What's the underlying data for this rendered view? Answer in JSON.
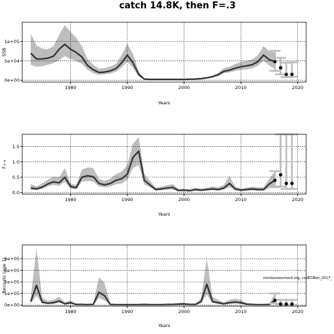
{
  "figure_title": "catch 14.8K, then F=.3",
  "footnote": "stockassessment.org, codEGBen_2017_",
  "chart_data": [
    {
      "type": "line",
      "panel": "ssb",
      "ylabel": "SSB",
      "xlabel": "Years",
      "xlim": [
        1971.5,
        2021.5
      ],
      "ylim": [
        -5000,
        150000
      ],
      "xticks": [
        1980,
        1990,
        2000,
        2010,
        2020
      ],
      "yticks": [
        0,
        50000,
        100000
      ],
      "ytick_labels": [
        "0e+00",
        "5e+04",
        "1e+05"
      ],
      "grid": true,
      "x": [
        1973,
        1974,
        1975,
        1976,
        1977,
        1978,
        1979,
        1980,
        1981,
        1982,
        1983,
        1984,
        1985,
        1986,
        1987,
        1988,
        1989,
        1990,
        1991,
        1992,
        1993,
        1994,
        1995,
        1996,
        1997,
        1998,
        1999,
        2000,
        2001,
        2002,
        2003,
        2004,
        2005,
        2006,
        2007,
        2008,
        2009,
        2010,
        2011,
        2012,
        2013,
        2014,
        2015,
        2016
      ],
      "y": [
        70000,
        55000,
        55000,
        57000,
        62000,
        80000,
        93000,
        80000,
        72000,
        60000,
        38000,
        27000,
        20000,
        21000,
        24000,
        30000,
        45000,
        65000,
        45000,
        15000,
        3000,
        2000,
        2000,
        2000,
        2000,
        2000,
        2000,
        2000,
        2500,
        3000,
        4000,
        6000,
        9000,
        14000,
        23000,
        26000,
        31000,
        35000,
        37000,
        40000,
        48000,
        65000,
        53000,
        48000
      ],
      "lower": [
        40000,
        35000,
        36000,
        40000,
        44000,
        52000,
        62000,
        55000,
        50000,
        42000,
        27000,
        18000,
        14000,
        15000,
        17000,
        22000,
        33000,
        48000,
        32000,
        10000,
        2000,
        1500,
        1500,
        1500,
        1500,
        1500,
        1500,
        1500,
        1800,
        2200,
        3000,
        4500,
        7000,
        11000,
        18000,
        20000,
        24000,
        27000,
        28000,
        31000,
        37000,
        50000,
        38000,
        30000
      ],
      "upper": [
        120000,
        90000,
        82000,
        80000,
        88000,
        118000,
        143000,
        125000,
        110000,
        88000,
        55000,
        40000,
        30000,
        31000,
        35000,
        42000,
        65000,
        95000,
        68000,
        22000,
        5000,
        3000,
        3000,
        3000,
        3000,
        3000,
        3000,
        3000,
        3500,
        4000,
        5500,
        8000,
        12000,
        19000,
        31000,
        35000,
        42000,
        47000,
        50000,
        54000,
        65000,
        88000,
        75000,
        72000
      ],
      "projection": {
        "x": [
          2016,
          2017,
          2018,
          2019
        ],
        "y": [
          48000,
          32000,
          15000,
          15000
        ],
        "lower": [
          24000,
          15000,
          8000,
          9000
        ],
        "upper": [
          76000,
          58000,
          45000,
          46000
        ]
      }
    },
    {
      "type": "line",
      "panel": "f",
      "ylabel": "F₄₋₈",
      "xlabel": "Years",
      "xlim": [
        1971.5,
        2021.5
      ],
      "ylim": [
        -0.05,
        1.9
      ],
      "xticks": [
        1980,
        1990,
        2000,
        2010,
        2020
      ],
      "yticks": [
        0.0,
        0.5,
        1.0,
        1.5
      ],
      "ytick_labels": [
        "0.0",
        "0.5",
        "1.0",
        "1.5"
      ],
      "grid": true,
      "x": [
        1973,
        1974,
        1975,
        1976,
        1977,
        1978,
        1979,
        1980,
        1981,
        1982,
        1983,
        1984,
        1985,
        1986,
        1987,
        1988,
        1989,
        1990,
        1991,
        1992,
        1993,
        1994,
        1995,
        1996,
        1997,
        1998,
        1999,
        2000,
        2001,
        2002,
        2003,
        2004,
        2005,
        2006,
        2007,
        2008,
        2009,
        2010,
        2011,
        2012,
        2013,
        2014,
        2015,
        2016
      ],
      "y": [
        0.15,
        0.12,
        0.18,
        0.28,
        0.35,
        0.32,
        0.5,
        0.2,
        0.16,
        0.5,
        0.55,
        0.52,
        0.3,
        0.25,
        0.3,
        0.4,
        0.45,
        0.6,
        1.15,
        1.35,
        0.4,
        0.25,
        0.1,
        0.12,
        0.15,
        0.17,
        0.07,
        0.08,
        0.06,
        0.1,
        0.08,
        0.1,
        0.12,
        0.1,
        0.15,
        0.3,
        0.12,
        0.08,
        0.1,
        0.12,
        0.1,
        0.1,
        0.28,
        0.4
      ],
      "lower": [
        0.1,
        0.08,
        0.12,
        0.2,
        0.25,
        0.22,
        0.35,
        0.13,
        0.1,
        0.35,
        0.38,
        0.36,
        0.2,
        0.17,
        0.2,
        0.27,
        0.3,
        0.42,
        0.8,
        0.9,
        0.27,
        0.17,
        0.06,
        0.08,
        0.1,
        0.1,
        0.04,
        0.05,
        0.04,
        0.06,
        0.05,
        0.06,
        0.08,
        0.06,
        0.09,
        0.18,
        0.07,
        0.05,
        0.06,
        0.07,
        0.06,
        0.06,
        0.15,
        0.18
      ],
      "upper": [
        0.28,
        0.2,
        0.3,
        0.42,
        0.52,
        0.5,
        0.8,
        0.3,
        0.25,
        0.75,
        0.82,
        0.8,
        0.45,
        0.38,
        0.45,
        0.6,
        0.68,
        0.9,
        1.6,
        1.8,
        0.6,
        0.38,
        0.16,
        0.2,
        0.24,
        0.28,
        0.12,
        0.13,
        0.1,
        0.16,
        0.13,
        0.16,
        0.2,
        0.17,
        0.25,
        0.55,
        0.2,
        0.13,
        0.16,
        0.19,
        0.17,
        0.17,
        0.45,
        0.7
      ],
      "projection": {
        "x": [
          2016,
          2017,
          2018,
          2019
        ],
        "y": [
          0.4,
          0.58,
          0.3,
          0.3
        ],
        "lower": [
          0.18,
          0.2,
          0.12,
          0.12
        ],
        "upper": [
          0.7,
          1.9,
          1.9,
          1.9
        ]
      }
    },
    {
      "type": "line",
      "panel": "recruits",
      "ylabel": "Recruits (age 1)",
      "xlabel": "Years",
      "xlim": [
        1971.5,
        2021.5
      ],
      "ylim": [
        -10000,
        520000
      ],
      "xticks": [
        1980,
        1990,
        2000,
        2010,
        2020
      ],
      "yticks": [
        0,
        100000,
        200000,
        300000,
        400000
      ],
      "ytick_labels": [
        "0e+00",
        "1e+05",
        "2e+05",
        "3e+05",
        "4e+05"
      ],
      "grid": true,
      "x": [
        1973,
        1974,
        1975,
        1976,
        1977,
        1978,
        1979,
        1980,
        1981,
        1982,
        1983,
        1984,
        1985,
        1986,
        1987,
        1988,
        1989,
        1990,
        1991,
        1992,
        1993,
        1994,
        1995,
        1996,
        1997,
        1998,
        1999,
        2000,
        2001,
        2002,
        2003,
        2004,
        2005,
        2006,
        2007,
        2008,
        2009,
        2010,
        2011,
        2012,
        2013,
        2014,
        2015,
        2016
      ],
      "y": [
        30000,
        170000,
        25000,
        15000,
        20000,
        35000,
        10000,
        20000,
        5000,
        5000,
        3000,
        5000,
        110000,
        80000,
        5000,
        3000,
        3000,
        3000,
        3000,
        3000,
        5000,
        3000,
        3000,
        3000,
        5000,
        5000,
        8000,
        10000,
        5000,
        5000,
        30000,
        180000,
        30000,
        20000,
        10000,
        20000,
        25000,
        20000,
        8000,
        5000,
        3000,
        3000,
        5000,
        40000
      ],
      "lower": [
        15000,
        80000,
        12000,
        8000,
        10000,
        18000,
        5000,
        10000,
        2000,
        2000,
        1000,
        2000,
        60000,
        40000,
        2000,
        1000,
        1000,
        1000,
        1000,
        1000,
        2000,
        1000,
        1000,
        1000,
        2000,
        2000,
        4000,
        5000,
        2000,
        2000,
        15000,
        90000,
        15000,
        10000,
        5000,
        10000,
        12000,
        10000,
        4000,
        2000,
        1000,
        1000,
        2000,
        15000
      ],
      "upper": [
        60000,
        490000,
        60000,
        35000,
        45000,
        70000,
        25000,
        40000,
        10000,
        10000,
        6000,
        10000,
        240000,
        190000,
        10000,
        6000,
        6000,
        6000,
        6000,
        6000,
        10000,
        6000,
        6000,
        6000,
        10000,
        10000,
        16000,
        20000,
        10000,
        10000,
        60000,
        400000,
        70000,
        45000,
        22000,
        45000,
        55000,
        45000,
        16000,
        10000,
        6000,
        6000,
        10000,
        100000
      ],
      "projection": {
        "x": [
          2016,
          2017,
          2018,
          2019
        ],
        "y": [
          40000,
          8000,
          8000,
          8000
        ],
        "lower": [
          15000,
          2000,
          2000,
          2000
        ],
        "upper": [
          100000,
          45000,
          45000,
          45000
        ]
      }
    }
  ]
}
